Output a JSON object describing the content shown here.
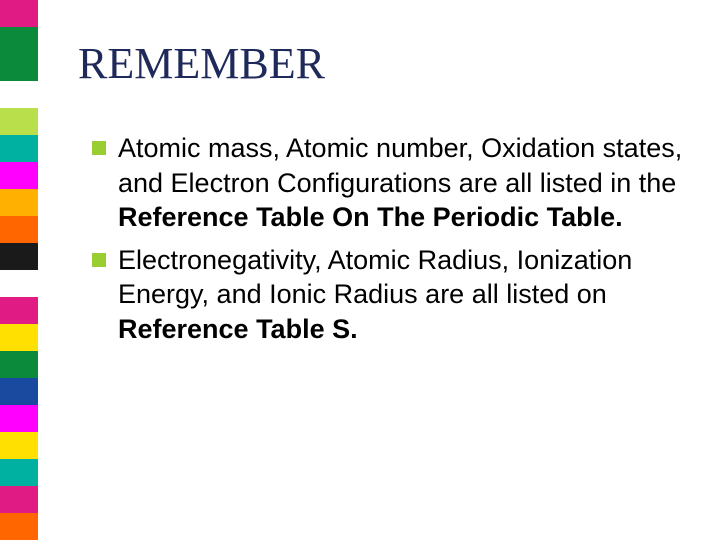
{
  "title": "REMEMBER",
  "title_color": "#1f2a5a",
  "title_fontsize": 44,
  "body_fontsize": 27,
  "background_color": "#ffffff",
  "bullet_color": "#9acd32",
  "strip_colors": [
    "#e01b84",
    "#0a8a3a",
    "#0a8a3a",
    "#ffffff",
    "#b9e04a",
    "#00b0a0",
    "#ff00ff",
    "#ffb000",
    "#ff6600",
    "#1a1a1a",
    "#ffffff",
    "#e01b84",
    "#ffe000",
    "#0a8a3a",
    "#1a4aa0",
    "#ff00ff",
    "#ffe000",
    "#00b0a0",
    "#e01b84",
    "#ff6600"
  ],
  "bullets": [
    {
      "pre": "Atomic mass, Atomic number, Oxidation states, and Electron Configurations are all listed in the ",
      "bold": "Reference Table On The Periodic Table.",
      "post": ""
    },
    {
      "pre": "Electronegativity, Atomic Radius, Ionization Energy, and Ionic Radius are all listed on ",
      "bold": "Reference Table S.",
      "post": ""
    }
  ]
}
